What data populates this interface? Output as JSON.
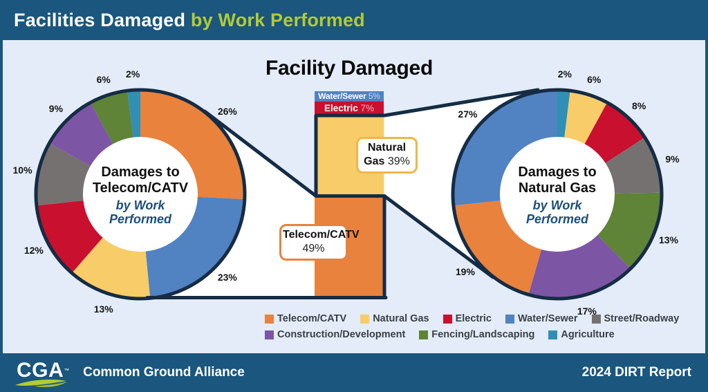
{
  "header": {
    "title_main": "Facilities Damaged",
    "title_accent": "by Work Performed"
  },
  "footer": {
    "logo_text": "CGA",
    "logo_tm": "™",
    "org_name": "Common Ground Alliance",
    "report_label": "2024 DIRT Report"
  },
  "theme": {
    "navy": "#1a567d",
    "panel_bg": "#e3ecf8",
    "outline_navy": "#152c44",
    "accent_green": "#b3cb35",
    "subtitle_blue": "#1d4e79"
  },
  "chart_data": {
    "type": "donut",
    "title": "Facility Damaged",
    "legend": [
      "Telecom/CATV",
      "Natural Gas",
      "Electric",
      "Water/Sewer",
      "Street/Roadway",
      "Construction/Development",
      "Fencing/Landscaping",
      "Agriculture"
    ],
    "colors": {
      "Telecom/CATV": "#e8823c",
      "Natural Gas": "#f8cc68",
      "Electric": "#c9102e",
      "Water/Sewer": "#5182c2",
      "Street/Roadway": "#767171",
      "Construction/Development": "#7d55a5",
      "Fencing/Landscaping": "#5f8337",
      "Agriculture": "#2f8fb5"
    },
    "facility_damaged_bar": {
      "segments": [
        {
          "label": "Water/Sewer",
          "value": 5,
          "pct": "5%"
        },
        {
          "label": "Electric",
          "value": 7,
          "pct": "7%"
        },
        {
          "label": "Natural Gas",
          "value": 39,
          "pct": "39%"
        },
        {
          "label": "Telecom/CATV",
          "value": 49,
          "pct": "49%"
        }
      ]
    },
    "left_donut": {
      "title": "Damages to Telecom/CATV",
      "subtitle": "by Work Performed",
      "segments": [
        {
          "label": "Telecom/CATV",
          "value": 26,
          "pct": "26%"
        },
        {
          "label": "Water/Sewer",
          "value": 23,
          "pct": "23%"
        },
        {
          "label": "Natural Gas",
          "value": 13,
          "pct": "13%"
        },
        {
          "label": "Electric",
          "value": 12,
          "pct": "12%"
        },
        {
          "label": "Street/Roadway",
          "value": 10,
          "pct": "10%"
        },
        {
          "label": "Construction/Development",
          "value": 9,
          "pct": "9%"
        },
        {
          "label": "Fencing/Landscaping",
          "value": 6,
          "pct": "6%"
        },
        {
          "label": "Agriculture",
          "value": 2,
          "pct": "2%"
        }
      ]
    },
    "right_donut": {
      "title": "Damages to Natural Gas",
      "subtitle": "by Work Performed",
      "segments": [
        {
          "label": "Agriculture",
          "value": 2,
          "pct": "2%"
        },
        {
          "label": "Natural Gas",
          "value": 6,
          "pct": "6%"
        },
        {
          "label": "Electric",
          "value": 8,
          "pct": "8%"
        },
        {
          "label": "Street/Roadway",
          "value": 9,
          "pct": "9%"
        },
        {
          "label": "Fencing/Landscaping",
          "value": 13,
          "pct": "13%"
        },
        {
          "label": "Construction/Development",
          "value": 17,
          "pct": "17%"
        },
        {
          "label": "Telecom/CATV",
          "value": 19,
          "pct": "19%"
        },
        {
          "label": "Water/Sewer",
          "value": 27,
          "pct": "27%"
        }
      ]
    }
  }
}
